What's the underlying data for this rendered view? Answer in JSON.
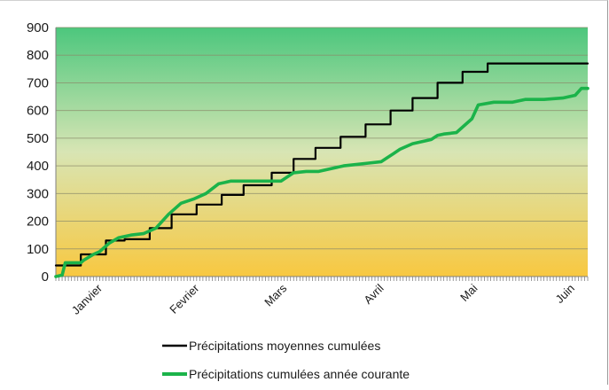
{
  "chart_data": {
    "type": "line",
    "title": "",
    "xlabel": "",
    "ylabel": "",
    "ylim": [
      0,
      900
    ],
    "yticks": [
      0,
      100,
      200,
      300,
      400,
      500,
      600,
      700,
      800,
      900
    ],
    "x_unit": "day",
    "xlim": [
      0,
      170
    ],
    "month_labels": [
      {
        "label": "Janvier",
        "x": 15
      },
      {
        "label": "Fevrier",
        "x": 46
      },
      {
        "label": "Mars",
        "x": 74
      },
      {
        "label": "Avril",
        "x": 105
      },
      {
        "label": "Mai",
        "x": 135
      },
      {
        "label": "Juin",
        "x": 166
      }
    ],
    "grid": true,
    "background_gradient": [
      "#4cc77d",
      "#d8e5b4",
      "#f8c840"
    ],
    "series": [
      {
        "name": "Précipitations moyennes cumulées",
        "color": "#000000",
        "x": [
          0,
          8,
          8,
          16,
          16,
          22,
          22,
          30,
          30,
          37,
          37,
          45,
          45,
          53,
          53,
          60,
          60,
          69,
          69,
          76,
          76,
          83,
          83,
          91,
          91,
          99,
          99,
          107,
          107,
          114,
          114,
          122,
          122,
          130,
          130,
          138,
          138,
          145,
          145,
          153,
          153,
          160,
          160,
          170
        ],
        "y": [
          40,
          40,
          80,
          80,
          130,
          130,
          135,
          135,
          175,
          175,
          225,
          225,
          260,
          260,
          295,
          295,
          330,
          330,
          375,
          375,
          425,
          425,
          465,
          465,
          505,
          505,
          550,
          550,
          600,
          600,
          645,
          645,
          700,
          700,
          740,
          740,
          770,
          770,
          770,
          770,
          770,
          770,
          770,
          770
        ]
      },
      {
        "name": "Précipitations cumulées année courante",
        "color": "#1bb34a",
        "x": [
          0,
          2,
          3,
          8,
          9,
          12,
          14,
          17,
          20,
          24,
          28,
          32,
          36,
          40,
          44,
          48,
          52,
          56,
          58,
          60,
          64,
          68,
          72,
          76,
          80,
          84,
          88,
          92,
          96,
          100,
          104,
          106,
          108,
          110,
          114,
          118,
          120,
          122,
          124,
          128,
          130,
          133,
          135,
          140,
          146,
          150,
          156,
          162,
          166,
          168,
          170
        ],
        "y": [
          0,
          5,
          50,
          50,
          60,
          80,
          90,
          120,
          140,
          150,
          155,
          175,
          225,
          265,
          280,
          300,
          335,
          345,
          345,
          345,
          345,
          345,
          345,
          375,
          380,
          380,
          390,
          400,
          405,
          410,
          415,
          430,
          445,
          460,
          480,
          490,
          495,
          510,
          515,
          520,
          540,
          570,
          620,
          630,
          630,
          640,
          640,
          645,
          655,
          680,
          680
        ]
      }
    ],
    "legend": {
      "position": "bottom",
      "entries": [
        "Précipitations moyennes cumulées",
        "Précipitations cumulées année courante"
      ]
    }
  }
}
